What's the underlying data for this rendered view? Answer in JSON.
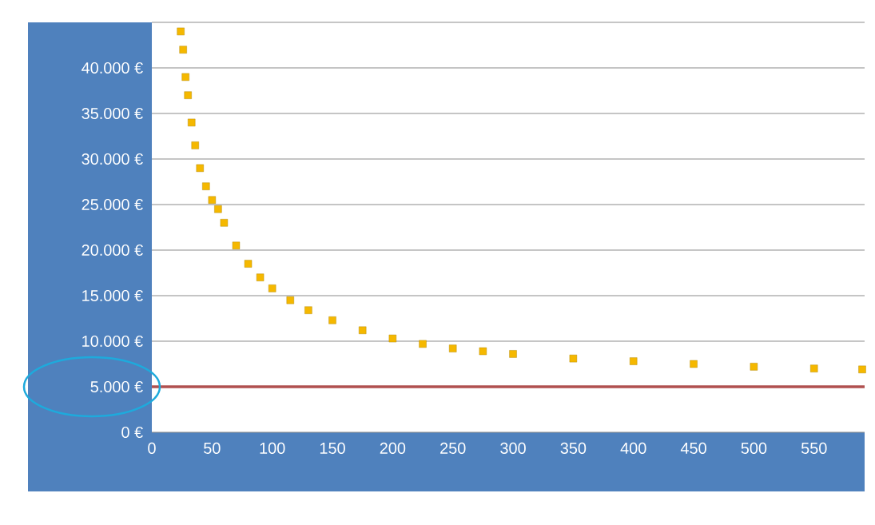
{
  "chart_data": {
    "type": "scatter",
    "x": [
      24,
      26,
      28,
      30,
      33,
      36,
      40,
      45,
      50,
      55,
      60,
      70,
      80,
      90,
      100,
      115,
      130,
      150,
      175,
      200,
      225,
      250,
      275,
      300,
      350,
      400,
      450,
      500,
      550,
      590
    ],
    "values": [
      44000,
      42000,
      39000,
      37000,
      34000,
      31500,
      29000,
      27000,
      25500,
      24500,
      23000,
      20500,
      18500,
      17000,
      15800,
      14500,
      13400,
      12300,
      11200,
      10300,
      9700,
      9200,
      8900,
      8600,
      8100,
      7800,
      7500,
      7200,
      7000,
      6900
    ],
    "color": "#f5b800",
    "marker": "square",
    "xlim": [
      0,
      592
    ],
    "ylim": [
      0,
      45000
    ],
    "xticks": [
      0,
      50,
      100,
      150,
      200,
      250,
      300,
      350,
      400,
      450,
      500,
      550
    ],
    "yticks": [
      {
        "value": 0,
        "label": "0 €"
      },
      {
        "value": 5000,
        "label": "5.000 €"
      },
      {
        "value": 10000,
        "label": "10.000 €"
      },
      {
        "value": 15000,
        "label": "15.000 €"
      },
      {
        "value": 20000,
        "label": "20.000 €"
      },
      {
        "value": 25000,
        "label": "25.000 €"
      },
      {
        "value": 30000,
        "label": "30.000 €"
      },
      {
        "value": 35000,
        "label": "35.000 €"
      },
      {
        "value": 40000,
        "label": "40.000 €"
      },
      {
        "value": 45000,
        "label": null
      }
    ],
    "grid": "y",
    "ref_lines": [
      {
        "axis": "y",
        "value": 5000,
        "color": "#b0504f"
      }
    ]
  }
}
